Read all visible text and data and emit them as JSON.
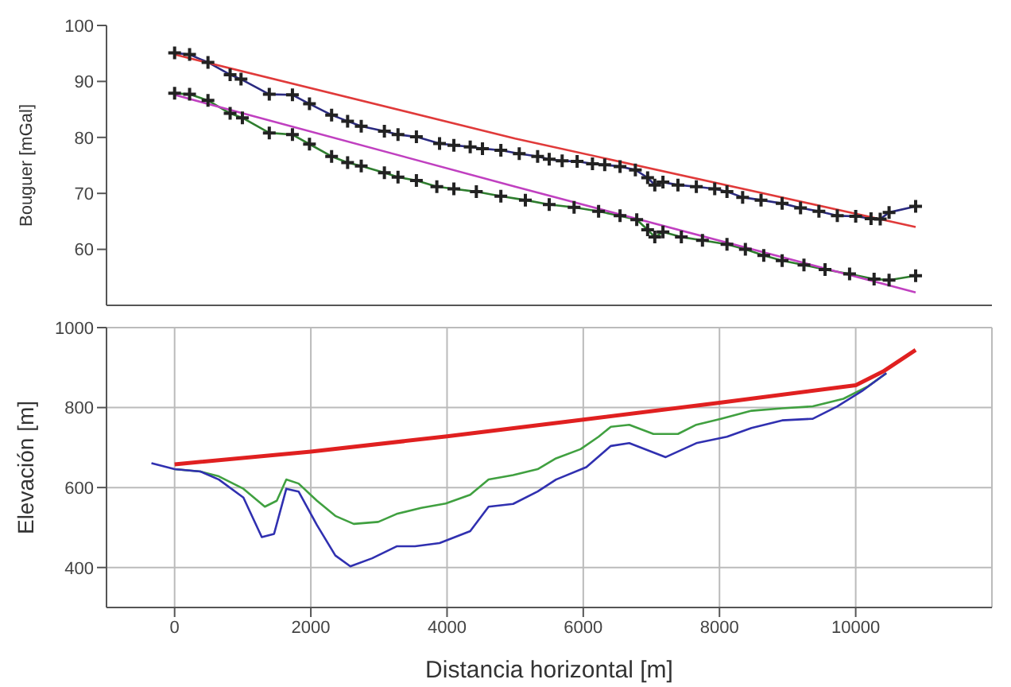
{
  "chart_data": [
    {
      "type": "line",
      "ylabel": "Bouguer [mGal]",
      "xlim": [
        -1000,
        12000
      ],
      "ylim": [
        50,
        100
      ],
      "yticks": [
        60,
        70,
        80,
        90,
        100
      ],
      "tick_labels": "y",
      "grid": false,
      "legend": false,
      "marker": "cross",
      "series": [
        {
          "color": "#2a2a80",
          "x": [
            0,
            220,
            490,
            815,
            975,
            1390,
            1730,
            1980,
            2305,
            2540,
            2740,
            3080,
            3280,
            3550,
            3890,
            4100,
            4340,
            4520,
            4790,
            5060,
            5330,
            5500,
            5690,
            5910,
            6135,
            6315,
            6540,
            6765,
            6945,
            7050,
            7170,
            7390,
            7660,
            7930,
            8110,
            8340,
            8610,
            8920,
            9190,
            9460,
            9730,
            10000,
            10225,
            10360,
            10490,
            10880
          ],
          "values": [
            95.1,
            94.8,
            93.4,
            91.2,
            90.4,
            87.7,
            87.6,
            86,
            84,
            82.9,
            82,
            81.1,
            80.5,
            80.1,
            78.9,
            78.6,
            78.3,
            78,
            77.7,
            77.1,
            76.6,
            76.1,
            75.8,
            75.7,
            75.3,
            75.1,
            74.8,
            74.2,
            72.8,
            71.5,
            72,
            71.5,
            71.2,
            70.8,
            70.3,
            69.3,
            68.8,
            68.2,
            67.4,
            66.8,
            66,
            65.9,
            65.5,
            65.4,
            66.6,
            67.7
          ]
        },
        {
          "color": "#2e7d2e",
          "x": [
            0,
            220,
            490,
            815,
            995,
            1390,
            1730,
            1980,
            2305,
            2540,
            2740,
            3080,
            3280,
            3550,
            3850,
            4100,
            4430,
            4790,
            5150,
            5500,
            5865,
            6225,
            6540,
            6785,
            6945,
            7050,
            7170,
            7440,
            7750,
            8110,
            8380,
            8650,
            8920,
            9240,
            9550,
            9910,
            10270,
            10490,
            10880
          ],
          "values": [
            87.9,
            87.7,
            86.6,
            84.3,
            83.5,
            80.8,
            80.5,
            78.8,
            76.6,
            75.5,
            74.9,
            73.7,
            72.9,
            72.3,
            71.2,
            70.8,
            70.3,
            69.5,
            68.8,
            68,
            67.5,
            66.8,
            66,
            65.3,
            63.5,
            62.2,
            63.1,
            62.2,
            61.6,
            60.9,
            60,
            58.9,
            58,
            57.2,
            56.4,
            55.6,
            54.7,
            54.5,
            55.3
          ]
        },
        {
          "color": "#e03a3a",
          "marker": "none",
          "x": [
            0,
            5000,
            10880
          ],
          "values": [
            94.8,
            79.8,
            64
          ]
        },
        {
          "color": "#c040c0",
          "marker": "none",
          "x": [
            0,
            5000,
            10880
          ],
          "values": [
            87.6,
            71.2,
            52.3
          ]
        }
      ]
    },
    {
      "type": "line",
      "xlabel": "Distancia horizontal [m]",
      "ylabel": "Elevación  [m]",
      "xlim": [
        -1000,
        12000
      ],
      "xticks": [
        0,
        2000,
        4000,
        6000,
        8000,
        10000
      ],
      "ylim": [
        300,
        1000
      ],
      "yticks": [
        400,
        600,
        800,
        1000
      ],
      "grid": true,
      "legend": false,
      "marker": "none",
      "series": [
        {
          "color": "#e02020",
          "x": [
            0,
            2000,
            4000,
            6000,
            8000,
            10000,
            10400,
            10880
          ],
          "values": [
            658,
            690,
            728,
            770,
            812,
            856,
            890,
            944
          ]
        },
        {
          "color": "#40a040",
          "x": [
            0,
            380,
            650,
            1010,
            1325,
            1500,
            1640,
            1820,
            2090,
            2360,
            2630,
            2990,
            3260,
            3620,
            3980,
            4340,
            4610,
            4970,
            5330,
            5600,
            5960,
            6225,
            6405,
            6675,
            7030,
            7390,
            7660,
            8020,
            8470,
            8920,
            9370,
            9820,
            10180,
            10450
          ],
          "values": [
            646,
            640,
            628,
            597,
            552,
            567,
            620,
            610,
            567,
            529,
            509,
            514,
            534,
            549,
            560,
            582,
            620,
            631,
            646,
            673,
            696,
            727,
            752,
            757,
            734,
            734,
            757,
            772,
            792,
            798,
            803,
            822,
            853,
            886
          ]
        },
        {
          "color": "#3030b0",
          "x": [
            -340,
            0,
            380,
            650,
            1010,
            1280,
            1460,
            1640,
            1820,
            2090,
            2360,
            2580,
            2900,
            3260,
            3530,
            3890,
            4340,
            4610,
            4970,
            5330,
            5600,
            6045,
            6405,
            6675,
            7210,
            7660,
            8110,
            8470,
            8920,
            9370,
            9730,
            10090,
            10450
          ],
          "values": [
            661,
            646,
            640,
            620,
            575,
            476,
            484,
            597,
            590,
            506,
            430,
            403,
            423,
            453,
            453,
            461,
            491,
            552,
            559,
            590,
            620,
            651,
            704,
            711,
            676,
            711,
            727,
            749,
            768,
            772,
            803,
            841,
            886
          ]
        }
      ]
    }
  ]
}
